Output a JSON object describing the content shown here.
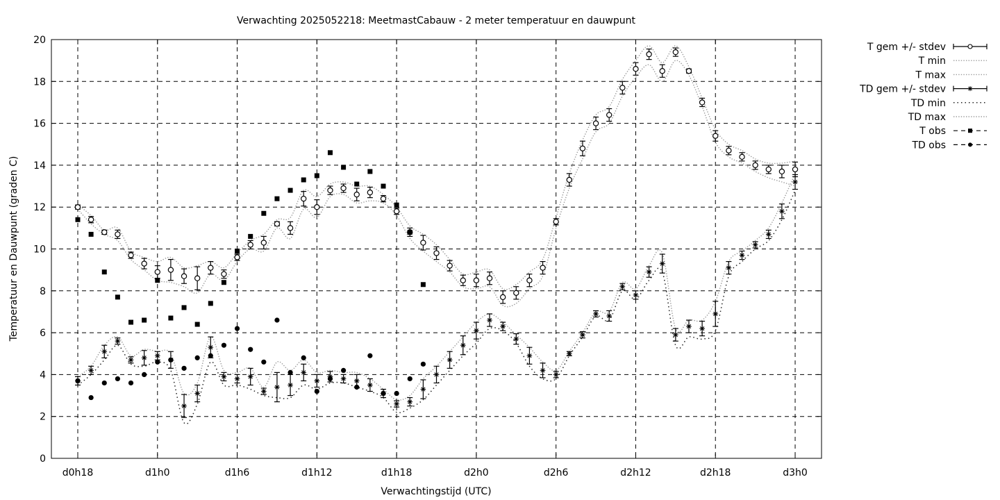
{
  "chart_data": {
    "type": "line",
    "title": "Verwachting 2025052218: MeetmastCabauw - 2 meter temperatuur en dauwpunt",
    "xlabel": "Verwachtingstijd (UTC)",
    "ylabel": "Temperatuur en Dauwpunt (graden C)",
    "xlim": [
      18,
      75
    ],
    "ylim": [
      0,
      20
    ],
    "grid": true,
    "legend_position": "outside-right",
    "x_ticks": [
      {
        "x": 18,
        "label": "d0h18"
      },
      {
        "x": 24,
        "label": "d1h0"
      },
      {
        "x": 30,
        "label": "d1h6"
      },
      {
        "x": 36,
        "label": "d1h12"
      },
      {
        "x": 42,
        "label": "d1h18"
      },
      {
        "x": 48,
        "label": "d2h0"
      },
      {
        "x": 54,
        "label": "d2h6"
      },
      {
        "x": 60,
        "label": "d2h12"
      },
      {
        "x": 66,
        "label": "d2h18"
      },
      {
        "x": 72,
        "label": "d3h0"
      }
    ],
    "y_ticks": [
      0,
      2,
      4,
      6,
      8,
      10,
      12,
      14,
      16,
      18,
      20
    ],
    "legend": [
      "T gem +/- stdev",
      "T min",
      "T max",
      "TD gem +/- stdev",
      "TD min",
      "TD max",
      "T obs",
      "TD obs"
    ],
    "x": [
      18,
      19,
      20,
      21,
      22,
      23,
      24,
      25,
      26,
      27,
      28,
      29,
      30,
      31,
      32,
      33,
      34,
      35,
      36,
      37,
      38,
      39,
      40,
      41,
      42,
      43,
      44,
      45,
      46,
      47,
      48,
      49,
      50,
      51,
      52,
      53,
      54,
      55,
      56,
      57,
      58,
      59,
      60,
      61,
      62,
      63,
      64,
      65,
      66,
      67,
      68,
      69,
      70,
      71,
      72
    ],
    "series": [
      {
        "name": "T gem +/- stdev",
        "style": "open-circle-errorbar",
        "values": [
          12.0,
          11.4,
          10.8,
          10.7,
          9.7,
          9.3,
          8.9,
          9.0,
          8.7,
          8.6,
          9.1,
          8.8,
          9.6,
          10.2,
          10.3,
          11.2,
          11.0,
          12.4,
          12.0,
          12.8,
          12.9,
          12.6,
          12.7,
          12.4,
          11.8,
          10.8,
          10.3,
          9.8,
          9.2,
          8.5,
          8.5,
          8.6,
          7.7,
          7.9,
          8.5,
          9.1,
          11.3,
          13.3,
          14.8,
          16.0,
          16.4,
          17.7,
          18.6,
          19.3,
          18.5,
          19.4,
          18.5,
          17.0,
          15.4,
          14.7,
          14.4,
          14.0,
          13.8,
          13.7,
          13.8
        ],
        "stdev": [
          0.1,
          0.15,
          0.1,
          0.2,
          0.15,
          0.25,
          0.3,
          0.5,
          0.35,
          0.55,
          0.3,
          0.2,
          0.15,
          0.2,
          0.3,
          0.1,
          0.3,
          0.35,
          0.35,
          0.2,
          0.2,
          0.3,
          0.25,
          0.15,
          0.15,
          0.2,
          0.35,
          0.3,
          0.25,
          0.25,
          0.3,
          0.3,
          0.3,
          0.3,
          0.3,
          0.3,
          0.15,
          0.3,
          0.35,
          0.3,
          0.3,
          0.3,
          0.3,
          0.25,
          0.3,
          0.2,
          0.1,
          0.2,
          0.25,
          0.2,
          0.2,
          0.2,
          0.2,
          0.3,
          0.35
        ]
      },
      {
        "name": "T min",
        "style": "dotted",
        "values": [
          11.9,
          11.2,
          10.7,
          10.4,
          9.5,
          9.0,
          8.5,
          8.4,
          8.2,
          7.9,
          8.8,
          8.5,
          9.4,
          10.0,
          9.9,
          11.0,
          10.5,
          11.9,
          11.5,
          12.5,
          12.6,
          12.2,
          12.3,
          12.2,
          11.6,
          10.5,
          9.9,
          9.4,
          8.9,
          8.2,
          8.1,
          8.2,
          7.3,
          7.4,
          8.1,
          8.7,
          11.0,
          12.9,
          14.3,
          15.6,
          16.0,
          17.3,
          18.2,
          18.8,
          18.0,
          19.0,
          18.3,
          16.8,
          15.1,
          14.4,
          14.1,
          13.7,
          13.4,
          13.2,
          13.0
        ]
      },
      {
        "name": "T max",
        "style": "dotted",
        "values": [
          12.1,
          11.6,
          10.9,
          11.0,
          9.9,
          9.6,
          9.4,
          9.6,
          9.1,
          9.2,
          9.4,
          9.1,
          9.8,
          10.4,
          10.7,
          11.4,
          11.5,
          12.8,
          12.5,
          13.1,
          13.2,
          13.0,
          13.0,
          12.6,
          12.0,
          11.1,
          10.7,
          10.2,
          9.5,
          8.8,
          8.9,
          9.0,
          8.1,
          8.3,
          8.9,
          9.5,
          11.5,
          13.6,
          15.2,
          16.4,
          16.8,
          18.1,
          19.0,
          19.7,
          18.9,
          19.7,
          18.7,
          17.2,
          15.7,
          15.0,
          14.7,
          14.3,
          14.1,
          14.1,
          14.2
        ]
      },
      {
        "name": "TD gem +/- stdev",
        "style": "star-errorbar",
        "values": [
          3.7,
          4.2,
          5.1,
          5.6,
          4.7,
          4.8,
          4.9,
          4.7,
          2.5,
          3.1,
          5.3,
          3.9,
          3.8,
          3.9,
          3.2,
          3.4,
          3.5,
          4.1,
          3.7,
          3.9,
          3.8,
          3.7,
          3.5,
          3.1,
          2.6,
          2.7,
          3.3,
          4.0,
          4.7,
          5.4,
          6.1,
          6.6,
          6.3,
          5.7,
          4.9,
          4.2,
          4.0,
          5.0,
          5.9,
          6.9,
          6.8,
          8.2,
          7.8,
          8.9,
          9.3,
          5.9,
          6.3,
          6.2,
          6.9,
          9.1,
          9.7,
          10.2,
          10.7,
          11.8,
          13.2
        ],
        "stdev": [
          0.2,
          0.2,
          0.3,
          0.15,
          0.15,
          0.35,
          0.2,
          0.4,
          0.55,
          0.4,
          0.5,
          0.2,
          0.2,
          0.4,
          0.15,
          0.7,
          0.5,
          0.4,
          0.3,
          0.25,
          0.2,
          0.3,
          0.3,
          0.2,
          0.15,
          0.2,
          0.45,
          0.4,
          0.4,
          0.45,
          0.4,
          0.3,
          0.2,
          0.25,
          0.4,
          0.35,
          0.15,
          0.1,
          0.15,
          0.15,
          0.25,
          0.15,
          0.2,
          0.25,
          0.45,
          0.3,
          0.3,
          0.35,
          0.6,
          0.3,
          0.2,
          0.15,
          0.2,
          0.35,
          0.35
        ]
      },
      {
        "name": "TD min",
        "style": "sparse-dotted",
        "values": [
          3.5,
          4.0,
          4.7,
          5.4,
          4.5,
          4.4,
          4.6,
          4.2,
          1.7,
          2.6,
          4.6,
          3.5,
          3.5,
          3.3,
          3.0,
          2.9,
          2.9,
          3.5,
          3.3,
          3.6,
          3.6,
          3.4,
          3.2,
          2.9,
          2.2,
          2.4,
          2.8,
          3.5,
          4.2,
          4.9,
          5.5,
          6.2,
          6.1,
          5.5,
          4.4,
          3.8,
          3.8,
          4.9,
          5.8,
          6.8,
          6.6,
          8.0,
          7.6,
          8.5,
          8.9,
          5.4,
          5.8,
          5.7,
          6.1,
          8.7,
          9.4,
          10.0,
          10.4,
          11.4,
          12.8
        ]
      },
      {
        "name": "TD max",
        "style": "dotted",
        "values": [
          3.9,
          4.4,
          5.4,
          5.8,
          4.9,
          5.2,
          5.1,
          5.0,
          3.1,
          3.6,
          5.8,
          4.2,
          4.1,
          4.3,
          3.4,
          4.6,
          4.2,
          4.7,
          4.1,
          4.2,
          4.1,
          4.1,
          3.8,
          3.3,
          2.8,
          3.0,
          3.8,
          4.4,
          5.1,
          5.8,
          6.5,
          6.9,
          6.5,
          5.9,
          5.3,
          4.6,
          4.2,
          5.1,
          6.0,
          7.0,
          7.0,
          8.4,
          8.1,
          9.2,
          9.8,
          6.2,
          6.6,
          6.6,
          7.5,
          9.4,
          9.9,
          10.4,
          11.0,
          12.2,
          13.6
        ]
      }
    ],
    "observations": [
      {
        "name": "T obs",
        "style": "filled-square",
        "x": [
          18,
          19,
          20,
          21,
          22,
          23,
          24,
          25,
          26,
          27,
          28,
          29,
          30,
          31,
          32,
          33,
          34,
          35,
          36,
          37,
          38,
          39,
          40,
          41,
          42,
          43,
          44
        ],
        "values": [
          11.4,
          10.7,
          8.9,
          7.7,
          6.5,
          6.6,
          8.5,
          6.7,
          7.2,
          6.4,
          7.4,
          8.4,
          9.9,
          10.6,
          11.7,
          12.4,
          12.8,
          13.3,
          13.5,
          14.6,
          13.9,
          13.1,
          13.7,
          13.0,
          12.1,
          10.8,
          8.3
        ]
      },
      {
        "name": "TD obs",
        "style": "filled-circle",
        "x": [
          18,
          19,
          20,
          21,
          22,
          23,
          24,
          25,
          26,
          27,
          28,
          29,
          30,
          31,
          32,
          33,
          34,
          35,
          36,
          37,
          38,
          39,
          40,
          41,
          42,
          43,
          44
        ],
        "values": [
          3.7,
          2.9,
          3.6,
          3.8,
          3.6,
          4.0,
          4.6,
          4.7,
          4.3,
          4.8,
          4.9,
          5.4,
          6.2,
          5.2,
          4.6,
          6.6,
          4.1,
          4.8,
          3.2,
          3.8,
          4.2,
          3.4,
          4.9,
          3.1,
          3.1,
          3.8,
          4.5
        ]
      }
    ]
  }
}
